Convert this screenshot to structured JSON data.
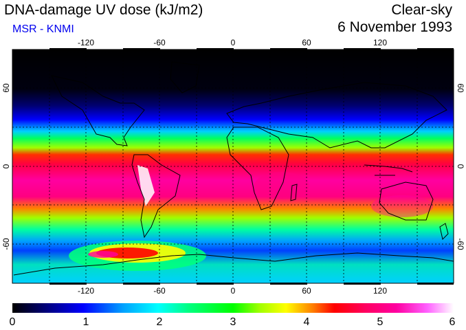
{
  "header": {
    "title": "DNA-damage UV dose (kJ/m2)",
    "credit": "MSR - KNMI",
    "condition": "Clear-sky",
    "date": "6 November 1993"
  },
  "map": {
    "lon_range": [
      -180,
      180
    ],
    "lat_range": [
      -90,
      90
    ],
    "lon_ticks": [
      "-120",
      "-60",
      "0",
      "60",
      "120"
    ],
    "lat_ticks_left": [
      "60",
      "0",
      "-60"
    ],
    "lat_ticks_right": [
      "60",
      "0",
      "-60"
    ]
  },
  "colorbar": {
    "min": 0,
    "max": 6,
    "labels": [
      "0",
      "1",
      "2",
      "3",
      "4",
      "5",
      "6"
    ],
    "stops": [
      "#000000",
      "#000080",
      "#0000ff",
      "#00a0ff",
      "#00ffff",
      "#00ff80",
      "#00ff00",
      "#a0ff00",
      "#ffff00",
      "#ff8000",
      "#ff0000",
      "#ff0060",
      "#ff00a0",
      "#ff60ff",
      "#ffffff"
    ]
  }
}
